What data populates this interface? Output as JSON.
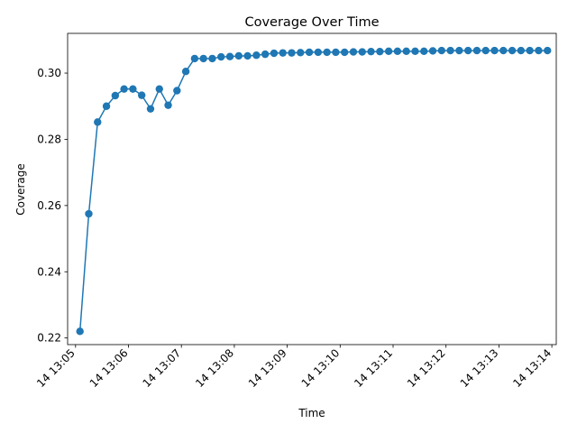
{
  "chart_data": {
    "type": "line",
    "title": "Coverage Over Time",
    "xlabel": "Time",
    "ylabel": "Coverage",
    "color": "#1f77b4",
    "grid": false,
    "ylim": [
      0.218,
      0.312
    ],
    "xlim": [
      "14 13:04:51",
      "14 13:14:05"
    ],
    "yticks": [
      0.22,
      0.24,
      0.26,
      0.28,
      0.3
    ],
    "ytick_labels": [
      "0.22",
      "0.24",
      "0.26",
      "0.28",
      "0.30"
    ],
    "xticks": [
      "14 13:05:00",
      "14 13:06:00",
      "14 13:07:00",
      "14 13:08:00",
      "14 13:09:00",
      "14 13:10:00",
      "14 13:11:00",
      "14 13:12:00",
      "14 13:13:00",
      "14 13:14:00"
    ],
    "xtick_labels": [
      "14 13:05",
      "14 13:06",
      "14 13:07",
      "14 13:08",
      "14 13:09",
      "14 13:10",
      "14 13:11",
      "14 13:12",
      "14 13:13",
      "14 13:14"
    ],
    "series": [
      {
        "x": [
          "14 13:05:05",
          "14 13:05:15",
          "14 13:05:25",
          "14 13:05:35",
          "14 13:05:45",
          "14 13:05:55",
          "14 13:06:05",
          "14 13:06:15",
          "14 13:06:25",
          "14 13:06:35",
          "14 13:06:45",
          "14 13:06:55",
          "14 13:07:05",
          "14 13:07:15",
          "14 13:07:25",
          "14 13:07:35",
          "14 13:07:45",
          "14 13:07:55",
          "14 13:08:05",
          "14 13:08:15",
          "14 13:08:25",
          "14 13:08:35",
          "14 13:08:45",
          "14 13:08:55",
          "14 13:09:05",
          "14 13:09:15",
          "14 13:09:25",
          "14 13:09:35",
          "14 13:09:45",
          "14 13:09:55",
          "14 13:10:05",
          "14 13:10:15",
          "14 13:10:25",
          "14 13:10:35",
          "14 13:10:45",
          "14 13:10:55",
          "14 13:11:05",
          "14 13:11:15",
          "14 13:11:25",
          "14 13:11:35",
          "14 13:11:45",
          "14 13:11:55",
          "14 13:12:05",
          "14 13:12:15",
          "14 13:12:25",
          "14 13:12:35",
          "14 13:12:45",
          "14 13:12:55",
          "14 13:13:05",
          "14 13:13:15",
          "14 13:13:25",
          "14 13:13:35",
          "14 13:13:45",
          "14 13:13:55"
        ],
        "y": [
          0.222,
          0.2575,
          0.2852,
          0.29,
          0.2932,
          0.2952,
          0.2952,
          0.2933,
          0.2892,
          0.2952,
          0.2903,
          0.2947,
          0.3005,
          0.3044,
          0.3044,
          0.3044,
          0.3049,
          0.305,
          0.3052,
          0.3052,
          0.3054,
          0.3057,
          0.306,
          0.3061,
          0.3061,
          0.3062,
          0.3063,
          0.3063,
          0.3063,
          0.3063,
          0.3063,
          0.3064,
          0.3064,
          0.3065,
          0.3065,
          0.3066,
          0.3066,
          0.3066,
          0.3066,
          0.3066,
          0.3067,
          0.3068,
          0.3068,
          0.3068,
          0.3068,
          0.3068,
          0.3068,
          0.3068,
          0.3068,
          0.3068,
          0.3068,
          0.3068,
          0.3068,
          0.3068
        ]
      }
    ]
  }
}
